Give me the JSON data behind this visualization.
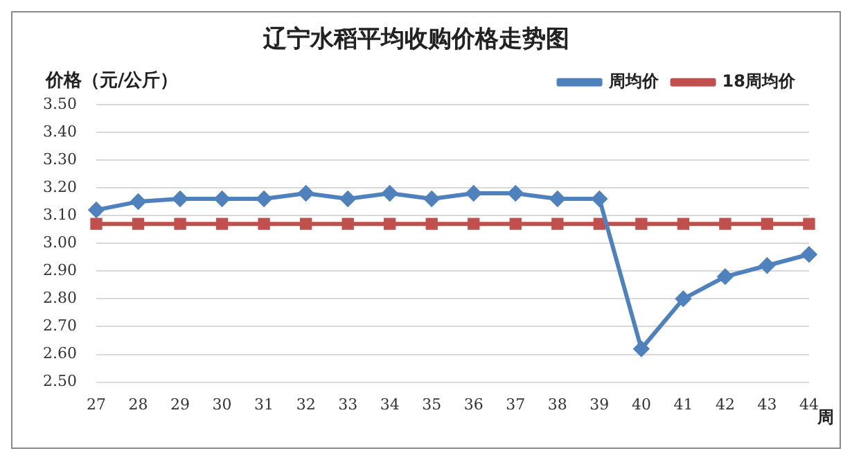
{
  "chart_data": {
    "type": "line",
    "title": "辽宁水稻平均收购价格走势图",
    "ylabel": "价格（元/公斤）",
    "xlabel": "周",
    "categories": [
      "27",
      "28",
      "29",
      "30",
      "31",
      "32",
      "33",
      "34",
      "35",
      "36",
      "37",
      "38",
      "39",
      "40",
      "41",
      "42",
      "43",
      "44"
    ],
    "series": [
      {
        "name": "周均价",
        "color": "#4f81bd",
        "marker": "diamond",
        "values": [
          3.12,
          3.15,
          3.16,
          3.16,
          3.16,
          3.18,
          3.16,
          3.18,
          3.16,
          3.18,
          3.18,
          3.16,
          3.16,
          2.62,
          2.8,
          2.88,
          2.92,
          2.96
        ]
      },
      {
        "name": "18周均价",
        "color": "#c0504d",
        "marker": "square",
        "values": [
          3.07,
          3.07,
          3.07,
          3.07,
          3.07,
          3.07,
          3.07,
          3.07,
          3.07,
          3.07,
          3.07,
          3.07,
          3.07,
          3.07,
          3.07,
          3.07,
          3.07,
          3.07
        ]
      }
    ],
    "ylim": [
      2.5,
      3.5
    ],
    "yticks": [
      {
        "value": 2.5,
        "label": "2.50"
      },
      {
        "value": 2.6,
        "label": "2.60"
      },
      {
        "value": 2.7,
        "label": "2.70"
      },
      {
        "value": 2.8,
        "label": "2.80"
      },
      {
        "value": 2.9,
        "label": "2.90"
      },
      {
        "value": 3.0,
        "label": "3.00"
      },
      {
        "value": 3.1,
        "label": "3.10"
      },
      {
        "value": 3.2,
        "label": "3.20"
      },
      {
        "value": 3.3,
        "label": "3.30"
      },
      {
        "value": 3.4,
        "label": "3.40"
      },
      {
        "value": 3.5,
        "label": "3.50"
      }
    ],
    "grid": "y",
    "legend": "top right"
  }
}
